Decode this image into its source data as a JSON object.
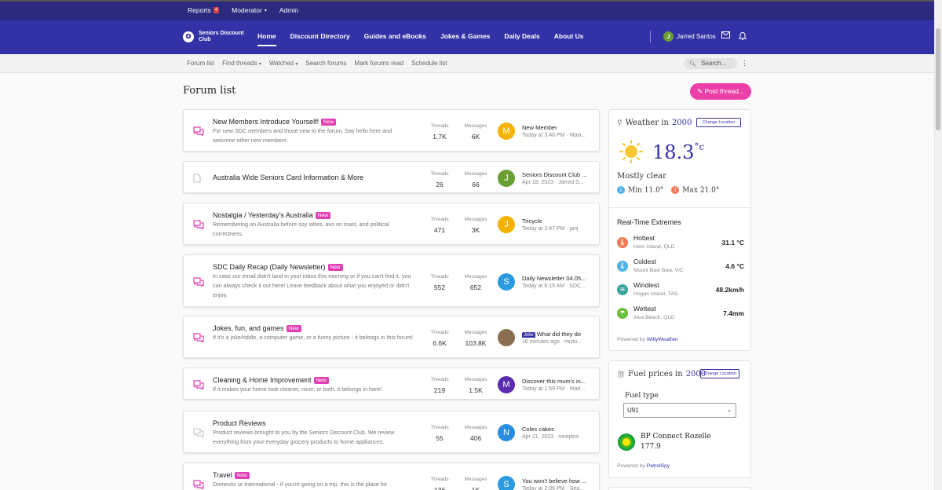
{
  "adminbar": {
    "reports_label": "Reports",
    "reports_count": "4",
    "moderator_label": "Moderator",
    "admin_label": "Admin"
  },
  "nav": {
    "logo_text": "Seniors Discount Club",
    "links": [
      "Home",
      "Discount Directory",
      "Guides and eBooks",
      "Jokes & Games",
      "Daily Deals",
      "About Us"
    ],
    "user_initial": "J",
    "user_name": "Jarred Santos"
  },
  "subnav": {
    "links": [
      "Forum list",
      "Find threads",
      "Watched",
      "Search forums",
      "Mark forums read",
      "Schedule list"
    ],
    "search_placeholder": "Search..."
  },
  "page": {
    "title": "Forum list",
    "post_button": "Post thread..."
  },
  "forums": [
    {
      "title": "New Members Introduce Yourself!",
      "is_new": true,
      "new_label": "New",
      "description": "For new SDC members and those new to the forum. Say hello here and welcome other new members.",
      "threads_label": "Threads",
      "threads": "1.7K",
      "messages_label": "Messages",
      "messages": "6K",
      "last_initial": "M",
      "last_color": "#f5b301",
      "last_title": "New Member",
      "last_meta": "Today at 3:48 PM · Mavi..."
    },
    {
      "title": "Australia Wide Seniors Card Information & More",
      "is_new": false,
      "new_label": "",
      "description": "",
      "threads_label": "Threads",
      "threads": "26",
      "messages_label": "Messages",
      "messages": "66",
      "last_initial": "J",
      "last_color": "#6aa033",
      "last_title": "Seniors Discount Club ...",
      "last_meta": "Apr 18, 2023 · Jarred S..."
    },
    {
      "title": "Nostalgia / Yesterday's Australia",
      "is_new": true,
      "new_label": "New",
      "description": "Remembering an Australia before soy lattes, avo on toast, and political correctness.",
      "threads_label": "Threads",
      "threads": "471",
      "messages_label": "Messages",
      "messages": "3K",
      "last_initial": "J",
      "last_color": "#f5b301",
      "last_title": "Tricycle",
      "last_meta": "Today at 2:47 PM · janj"
    },
    {
      "title": "SDC Daily Recap (Daily Newsletter)",
      "is_new": true,
      "new_label": "New",
      "description": "In case our email didn't land in your inbox this morning or if you can't find it, you can always check it out here! Leave feedback about what you enjoyed or didn't enjoy.",
      "threads_label": "Threads",
      "threads": "552",
      "messages_label": "Messages",
      "messages": "652",
      "last_initial": "S",
      "last_color": "#2a9be0",
      "last_title": "Daily Newsletter 04.05...",
      "last_meta": "Today at 6:15 AM · SDC..."
    },
    {
      "title": "Jokes, fun, and games",
      "is_new": true,
      "new_label": "New",
      "description": "If it's a joke/riddle, a computer game, or a funny picture - it belongs in this forum!",
      "threads_label": "Threads",
      "threads": "6.6K",
      "messages_label": "Messages",
      "messages": "103.8K",
      "last_initial": "",
      "last_color": "#8a6e50",
      "last_prefix": "Joke",
      "last_title": "What did they do",
      "last_meta": "16 minutes ago · micki..."
    },
    {
      "title": "Cleaning & Home Improvement",
      "is_new": true,
      "new_label": "New",
      "description": "If it makes your home look cleaner, nicer, or both, it belongs in here!",
      "threads_label": "Threads",
      "threads": "219",
      "messages_label": "Messages",
      "messages": "1.5K",
      "last_initial": "M",
      "last_color": "#5a2bb0",
      "last_title": "Discover this mum's in...",
      "last_meta": "Today at 1:59 PM · Mad..."
    },
    {
      "title": "Product Reviews",
      "is_new": false,
      "new_label": "",
      "description": "Product reviews brought to you by the Seniors Discount Club. We review everything from your everyday grocery products to home appliances.",
      "threads_label": "Threads",
      "threads": "55",
      "messages_label": "Messages",
      "messages": "406",
      "last_initial": "N",
      "last_color": "#2a8ee0",
      "last_title": "Coles cakes",
      "last_meta": "Apr 21, 2023 · ninepins"
    },
    {
      "title": "Travel",
      "is_new": true,
      "new_label": "New",
      "description": "Domestic or international - if you're going on a trip, this is the place for",
      "threads_label": "Threads",
      "threads": "136",
      "messages_label": "Messages",
      "messages": "1K",
      "last_initial": "S",
      "last_color": "#2a9be0",
      "last_title": "You won't believe how ...",
      "last_meta": "Today at 2:06 PM · Sea..."
    }
  ],
  "weather": {
    "heading": "Weather in",
    "postcode": "2000",
    "change_label": "Change Location",
    "temp": "18.3",
    "unit": "°c",
    "condition": "Mostly clear",
    "min_label": "Min 11.0°",
    "max_label": "Max 21.0°",
    "extremes_title": "Real-Time Extremes",
    "extremes": [
      {
        "name": "Hottest",
        "location": "Horn Island, QLD",
        "value": "31.1 °C",
        "color": "#f07a5a",
        "icon": "🌡"
      },
      {
        "name": "Coldest",
        "location": "Mount Baw Baw, VIC",
        "value": "4.6 °C",
        "color": "#4fb3e8",
        "icon": "🌡"
      },
      {
        "name": "Windiest",
        "location": "Hogan Island, TAS",
        "value": "48.2km/h",
        "color": "#3aa59a",
        "icon": "≋"
      },
      {
        "name": "Wettest",
        "location": "Alva Beach, QLD",
        "value": "7.4mm",
        "color": "#6cbf3a",
        "icon": "☂"
      }
    ],
    "powered_prefix": "Powered by",
    "powered_by": "WillyWeather"
  },
  "fuel": {
    "heading": "Fuel prices in",
    "postcode": "2000",
    "change_label": "Change Location",
    "type_label": "Fuel type",
    "selected": "U91",
    "station": "BP Connect Rozelle",
    "price": "177.9",
    "powered_prefix": "Powered by",
    "powered_by": "PetrolSpy"
  }
}
